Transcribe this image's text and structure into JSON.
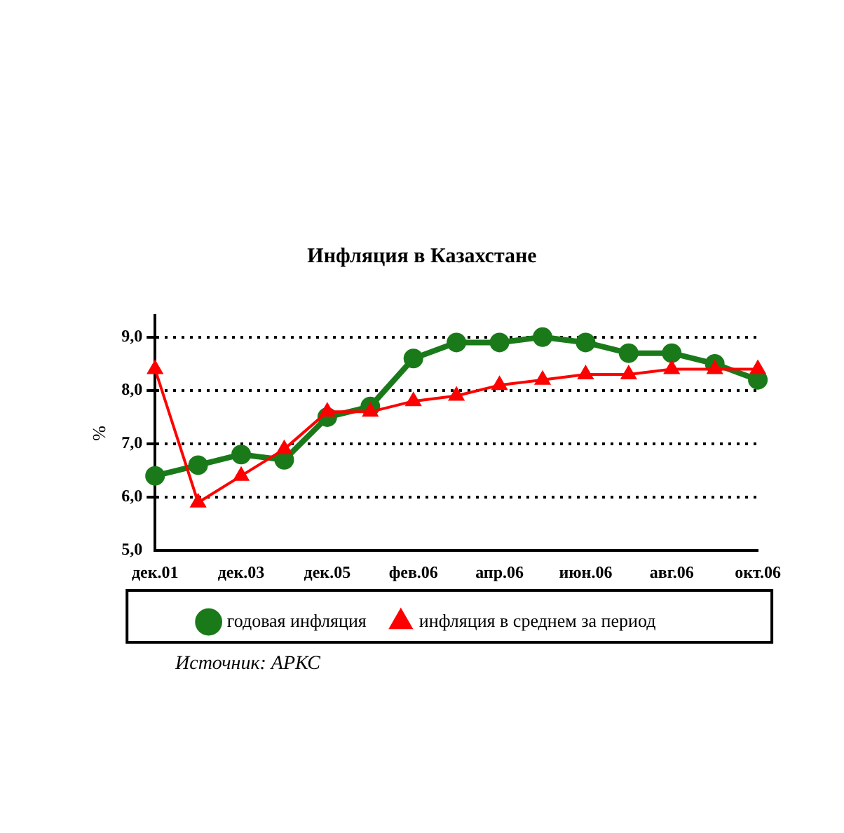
{
  "chart_data": {
    "type": "line",
    "title": "Инфляция в Казахстане",
    "ylabel": "%",
    "categories": [
      "дек.01",
      null,
      "дек.03",
      null,
      "дек.05",
      null,
      "фев.06",
      null,
      "апр.06",
      null,
      "июн.06",
      null,
      "авг.06",
      null,
      "окт.06"
    ],
    "series": [
      {
        "name": "годовая инфляция",
        "color": "#1a7a1a",
        "marker": "circle",
        "values": [
          6.4,
          6.6,
          6.8,
          6.7,
          7.5,
          7.7,
          8.6,
          8.9,
          8.9,
          9.0,
          8.9,
          8.7,
          8.7,
          8.5,
          8.2
        ]
      },
      {
        "name": "инфляция в среднем за период",
        "color": "#ff0000",
        "marker": "triangle",
        "values": [
          8.4,
          5.9,
          6.4,
          6.9,
          7.6,
          7.6,
          7.8,
          7.9,
          8.1,
          8.2,
          8.3,
          8.3,
          8.4,
          8.4,
          8.4
        ]
      }
    ],
    "ylim": [
      5,
      9.4
    ],
    "yticks": [
      {
        "value": 5,
        "label": "5,0"
      },
      {
        "value": 6,
        "label": "6,0"
      },
      {
        "value": 7,
        "label": "7,0"
      },
      {
        "value": 8,
        "label": "8,0"
      },
      {
        "value": 9,
        "label": "9,0"
      }
    ],
    "grid": "y",
    "legend": "bottom",
    "line_style": "solid",
    "annotations": [
      "Источник: АРКС"
    ]
  }
}
